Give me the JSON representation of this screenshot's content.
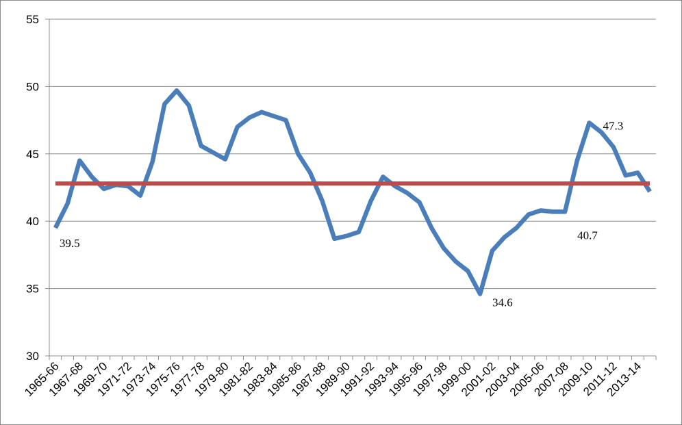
{
  "chart_data": {
    "type": "line",
    "title": "",
    "xlabel": "",
    "ylabel": "",
    "ylim": [
      30,
      55
    ],
    "yticks": [
      30,
      35,
      40,
      45,
      50,
      55
    ],
    "grid": true,
    "legend": "none",
    "x": [
      "1965-66",
      "1966-67",
      "1967-68",
      "1968-69",
      "1969-70",
      "1970-71",
      "1971-72",
      "1972-73",
      "1973-74",
      "1974-75",
      "1975-76",
      "1976-77",
      "1977-78",
      "1978-79",
      "1979-80",
      "1980-81",
      "1981-82",
      "1982-83",
      "1983-84",
      "1984-85",
      "1985-86",
      "1986-87",
      "1987-88",
      "1988-89",
      "1989-90",
      "1990-91",
      "1991-92",
      "1992-93",
      "1993-94",
      "1994-95",
      "1995-96",
      "1996-97",
      "1997-98",
      "1998-99",
      "1999-00",
      "2000-01",
      "2001-02",
      "2002-03",
      "2003-04",
      "2004-05",
      "2005-06",
      "2006-07",
      "2007-08",
      "2008-09",
      "2009-10",
      "2010-11",
      "2011-12",
      "2012-13",
      "2013-14",
      "2014-15"
    ],
    "x_tick_labels_shown": [
      "1965-66",
      "1967-68",
      "1969-70",
      "1971-72",
      "1973-74",
      "1975-76",
      "1977-78",
      "1979-80",
      "1981-82",
      "1983-84",
      "1985-86",
      "1987-88",
      "1989-90",
      "1991-92",
      "1993-94",
      "1995-96",
      "1997-98",
      "1999-00",
      "2001-02",
      "2003-04",
      "2005-06",
      "2007-08",
      "2009-10",
      "2011-12",
      "2013-14"
    ],
    "series": [
      {
        "color": "#4a7ebb",
        "values": [
          39.5,
          41.3,
          44.5,
          43.3,
          42.4,
          42.7,
          42.6,
          41.9,
          44.4,
          48.7,
          49.7,
          48.6,
          45.6,
          45.1,
          44.6,
          47.0,
          47.7,
          48.1,
          47.8,
          47.5,
          45.0,
          43.6,
          41.5,
          38.7,
          38.9,
          39.2,
          41.5,
          43.3,
          42.6,
          42.1,
          41.4,
          39.5,
          38.0,
          37.0,
          36.3,
          34.6,
          37.8,
          38.8,
          39.5,
          40.5,
          40.8,
          40.7,
          40.7,
          44.5,
          47.3,
          46.6,
          45.5,
          43.4,
          43.6,
          42.2
        ]
      },
      {
        "color": "#be4b48",
        "values": [
          42.8,
          42.8,
          42.8,
          42.8,
          42.8,
          42.8,
          42.8,
          42.8,
          42.8,
          42.8,
          42.8,
          42.8,
          42.8,
          42.8,
          42.8,
          42.8,
          42.8,
          42.8,
          42.8,
          42.8,
          42.8,
          42.8,
          42.8,
          42.8,
          42.8,
          42.8,
          42.8,
          42.8,
          42.8,
          42.8,
          42.8,
          42.8,
          42.8,
          42.8,
          42.8,
          42.8,
          42.8,
          42.8,
          42.8,
          42.8,
          42.8,
          42.8,
          42.8,
          42.8,
          42.8,
          42.8,
          42.8,
          42.8,
          42.8,
          42.8
        ]
      }
    ],
    "annotations": [
      {
        "text": "39.5",
        "index": 0,
        "value": 39.5,
        "placement": "below-right"
      },
      {
        "text": "34.6",
        "index": 35,
        "value": 34.6,
        "placement": "right"
      },
      {
        "text": "40.7",
        "index": 42,
        "value": 40.7,
        "placement": "right"
      },
      {
        "text": "47.3",
        "index": 44,
        "value": 47.3,
        "placement": "right"
      }
    ]
  }
}
